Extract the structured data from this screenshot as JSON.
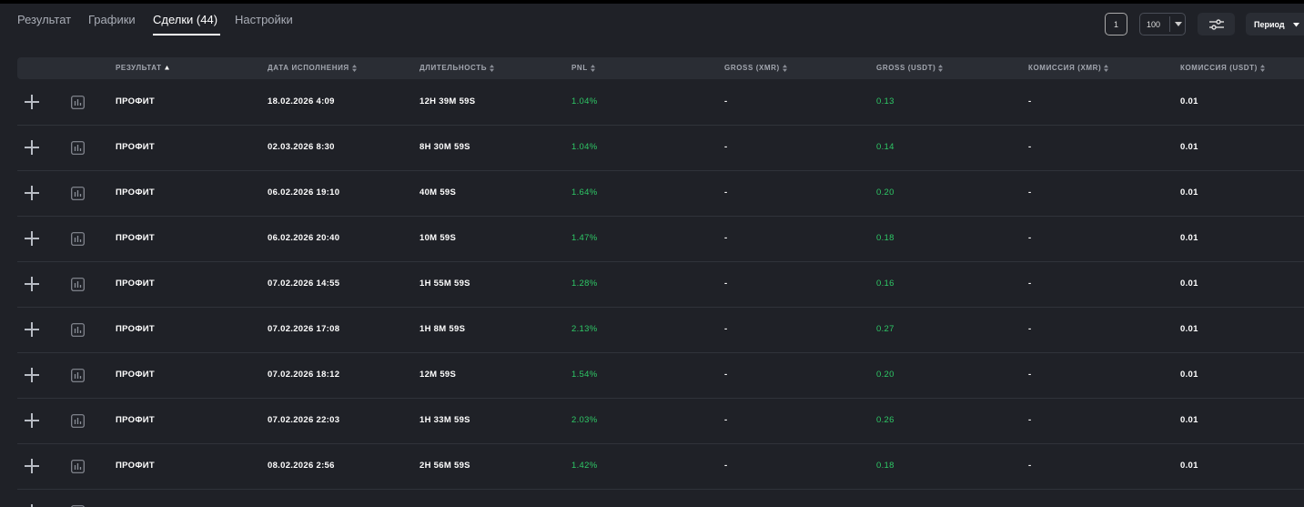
{
  "tabs": [
    "Результат",
    "Графики",
    "Сделки (44)",
    "Настройки"
  ],
  "controls": {
    "page": "1",
    "page_size": "100",
    "period": "Период"
  },
  "table": {
    "columns": [
      "РЕЗУЛЬТАТ",
      "ДАТА ИСПОЛНЕНИЯ",
      "ДЛИТЕЛЬНОСТЬ",
      "PNL",
      "GROSS (XMR)",
      "GROSS (USDT)",
      "КОМИССИЯ (XMR)",
      "КОМИССИЯ (USDT)"
    ],
    "rows": [
      [
        "ПРОФИТ",
        "18.02.2026 4:09",
        "12H 39M 59S",
        "1.04%",
        "-",
        "0.13",
        "-",
        "0.01"
      ],
      [
        "ПРОФИТ",
        "02.03.2026 8:30",
        "8H 30M 59S",
        "1.04%",
        "-",
        "0.14",
        "-",
        "0.01"
      ],
      [
        "ПРОФИТ",
        "06.02.2026 19:10",
        "40M 59S",
        "1.64%",
        "-",
        "0.20",
        "-",
        "0.01"
      ],
      [
        "ПРОФИТ",
        "06.02.2026 20:40",
        "10M 59S",
        "1.47%",
        "-",
        "0.18",
        "-",
        "0.01"
      ],
      [
        "ПРОФИТ",
        "07.02.2026 14:55",
        "1H 55M 59S",
        "1.28%",
        "-",
        "0.16",
        "-",
        "0.01"
      ],
      [
        "ПРОФИТ",
        "07.02.2026 17:08",
        "1H 8M 59S",
        "2.13%",
        "-",
        "0.27",
        "-",
        "0.01"
      ],
      [
        "ПРОФИТ",
        "07.02.2026 18:12",
        "12M 59S",
        "1.54%",
        "-",
        "0.20",
        "-",
        "0.01"
      ],
      [
        "ПРОФИТ",
        "07.02.2026 22:03",
        "1H 33M 59S",
        "2.03%",
        "-",
        "0.26",
        "-",
        "0.01"
      ],
      [
        "ПРОФИТ",
        "08.02.2026 2:56",
        "2H 56M 59S",
        "1.42%",
        "-",
        "0.18",
        "-",
        "0.01"
      ]
    ]
  }
}
